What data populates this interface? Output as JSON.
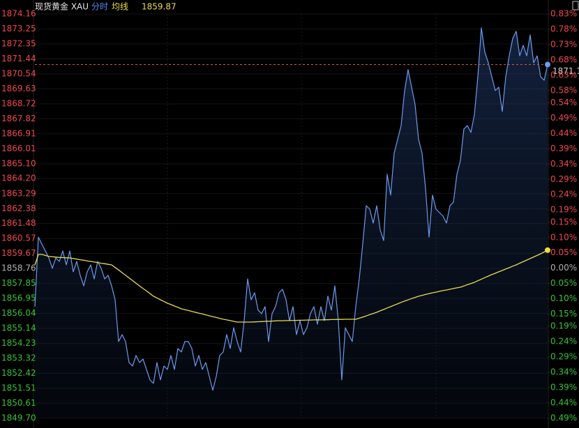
{
  "chart_data": {
    "type": "line",
    "title": "现货黄金 XAU",
    "subtitle": "分时",
    "series": [
      {
        "color": "#6b9cf0",
        "values": [
          1856.45,
          1860.66,
          1860.24,
          1859.82,
          1859.4,
          1858.77,
          1859.4,
          1859.19,
          1859.82,
          1858.98,
          1859.82,
          1858.56,
          1859.19,
          1858.35,
          1857.71,
          1858.56,
          1858.98,
          1858.13,
          1859.19,
          1858.77,
          1858.13,
          1858.35,
          1857.71,
          1856.87,
          1854.34,
          1854.76,
          1854.34,
          1853.07,
          1852.86,
          1853.5,
          1853.07,
          1853.28,
          1852.65,
          1852.02,
          1851.81,
          1853.07,
          1852.02,
          1852.86,
          1852.65,
          1853.5,
          1852.65,
          1853.92,
          1853.71,
          1854.34,
          1854.34,
          1853.92,
          1852.86,
          1853.5,
          1852.65,
          1853.07,
          1852.23,
          1851.39,
          1852.23,
          1853.5,
          1853.71,
          1854.76,
          1853.92,
          1855.18,
          1854.34,
          1853.71,
          1855.6,
          1858.13,
          1856.87,
          1857.29,
          1856.24,
          1856.03,
          1856.45,
          1854.34,
          1856.03,
          1856.45,
          1857.29,
          1857.5,
          1856.87,
          1855.6,
          1856.45,
          1854.76,
          1855.6,
          1854.76,
          1855.18,
          1856.03,
          1856.45,
          1855.39,
          1856.45,
          1855.6,
          1857.08,
          1856.24,
          1857.71,
          1855.6,
          1852.02,
          1855.18,
          1854.76,
          1854.34,
          1856.45,
          1858.13,
          1860.24,
          1862.56,
          1862.35,
          1861.51,
          1862.56,
          1861.09,
          1860.45,
          1864.46,
          1863.2,
          1865.73,
          1866.57,
          1867.41,
          1869.52,
          1870.79,
          1869.73,
          1868.68,
          1866.57,
          1865.73,
          1863.62,
          1860.66,
          1863.2,
          1862.35,
          1862.14,
          1861.93,
          1861.51,
          1862.56,
          1862.77,
          1864.46,
          1865.3,
          1867.2,
          1867.41,
          1866.99,
          1868.05,
          1870.36,
          1873.32,
          1871.84,
          1871.21,
          1870.36,
          1869.52,
          1869.73,
          1868.26,
          1870.36,
          1871.63,
          1872.68,
          1873.11,
          1871.63,
          1872.26,
          1871.63,
          1872.89,
          1871.21,
          1871.63,
          1870.36,
          1870.15,
          1871.1
        ]
      },
      {
        "name": "均线",
        "color": "#e8dc4c",
        "values": [
          1858.98,
          1859.61,
          1859.61,
          1859.55,
          1859.49,
          1859.47,
          1859.45,
          1859.43,
          1859.42,
          1859.41,
          1859.4,
          1859.36,
          1859.33,
          1859.29,
          1859.26,
          1859.22,
          1859.19,
          1859.15,
          1859.12,
          1859.08,
          1859.05,
          1859.01,
          1858.98,
          1858.82,
          1858.67,
          1858.51,
          1858.35,
          1858.19,
          1858.03,
          1857.87,
          1857.71,
          1857.55,
          1857.4,
          1857.24,
          1857.08,
          1856.98,
          1856.87,
          1856.77,
          1856.66,
          1856.58,
          1856.49,
          1856.41,
          1856.32,
          1856.27,
          1856.22,
          1856.16,
          1856.11,
          1856.06,
          1856.01,
          1855.95,
          1855.9,
          1855.85,
          1855.8,
          1855.74,
          1855.69,
          1855.65,
          1855.61,
          1855.56,
          1855.52,
          1855.52,
          1855.52,
          1855.52,
          1855.52,
          1855.53,
          1855.54,
          1855.55,
          1855.56,
          1855.57,
          1855.58,
          1855.59,
          1855.6,
          1855.6,
          1855.61,
          1855.61,
          1855.62,
          1855.62,
          1855.63,
          1855.63,
          1855.64,
          1855.64,
          1855.65,
          1855.65,
          1855.65,
          1855.66,
          1855.66,
          1855.67,
          1855.67,
          1855.68,
          1855.68,
          1855.69,
          1855.69,
          1855.69,
          1855.69,
          1855.75,
          1855.82,
          1855.89,
          1855.97,
          1856.04,
          1856.11,
          1856.2,
          1856.28,
          1856.37,
          1856.45,
          1856.54,
          1856.62,
          1856.71,
          1856.79,
          1856.86,
          1856.94,
          1857.01,
          1857.08,
          1857.13,
          1857.19,
          1857.24,
          1857.29,
          1857.33,
          1857.38,
          1857.42,
          1857.46,
          1857.5,
          1857.55,
          1857.59,
          1857.63,
          1857.7,
          1857.78,
          1857.85,
          1857.92,
          1858.02,
          1858.11,
          1858.21,
          1858.3,
          1858.39,
          1858.47,
          1858.56,
          1858.64,
          1858.73,
          1858.81,
          1858.9,
          1858.98,
          1859.08,
          1859.17,
          1859.27,
          1859.36,
          1859.46,
          1859.55,
          1859.65,
          1859.76,
          1859.87
        ]
      }
    ],
    "ylim": [
      1849.7,
      1874.16
    ],
    "yticks": [
      1874.16,
      1873.25,
      1872.35,
      1871.44,
      1870.54,
      1869.63,
      1868.72,
      1867.82,
      1866.91,
      1866.01,
      {
        "value": 1865.1,
        "label": "1865.10"
      },
      {
        "value": 1864.2,
        "label": "1864.20"
      },
      1863.29,
      1862.38,
      1861.48,
      1860.57,
      1859.67,
      1858.76,
      1857.85,
      1856.95,
      1856.04,
      1855.14,
      1854.23,
      1853.32,
      1852.42,
      1851.51,
      1850.61,
      {
        "value": 1849.7,
        "label": "1849.70"
      }
    ],
    "y2lim": [
      -0.49,
      0.83
    ],
    "y2ticks": [
      {
        "value": 0.83,
        "label": "0.83%"
      },
      {
        "value": 0.78,
        "label": "0.78%"
      },
      {
        "value": 0.73,
        "label": "0.73%"
      },
      {
        "value": 0.68,
        "label": "0.68%"
      },
      {
        "value": 0.63,
        "label": "0.63%"
      },
      {
        "value": 0.58,
        "label": "0.58%"
      },
      {
        "value": 0.54,
        "label": "0.54%"
      },
      {
        "value": 0.49,
        "label": "0.49%"
      },
      {
        "value": 0.44,
        "label": "0.44%"
      },
      {
        "value": 0.39,
        "label": "0.39%"
      },
      {
        "value": 0.34,
        "label": "0.34%"
      },
      {
        "value": 0.29,
        "label": "0.29%"
      },
      {
        "value": 0.24,
        "label": "0.24%"
      },
      {
        "value": 0.19,
        "label": "0.19%"
      },
      {
        "value": 0.15,
        "label": "0.15%"
      },
      {
        "value": 0.1,
        "label": "0.10%"
      },
      {
        "value": 0.05,
        "label": "0.05%"
      },
      {
        "value": 0,
        "label": "0.00%"
      },
      {
        "value": -0.05,
        "label": "0.05%"
      },
      {
        "value": -0.1,
        "label": "0.10%"
      },
      {
        "value": -0.15,
        "label": "0.15%"
      },
      {
        "value": -0.19,
        "label": "0.19%"
      },
      {
        "value": -0.24,
        "label": "0.24%"
      },
      {
        "value": -0.29,
        "label": "0.29%"
      },
      {
        "value": -0.34,
        "label": "0.34%"
      },
      {
        "value": -0.39,
        "label": "0.39%"
      },
      {
        "value": -0.44,
        "label": "0.44%"
      },
      {
        "value": -0.49,
        "label": "0.49%"
      }
    ],
    "up_color": "#f0474f",
    "down_color": "#35c43a",
    "flat_color": "#b0b0b0",
    "grid": true
  }
}
